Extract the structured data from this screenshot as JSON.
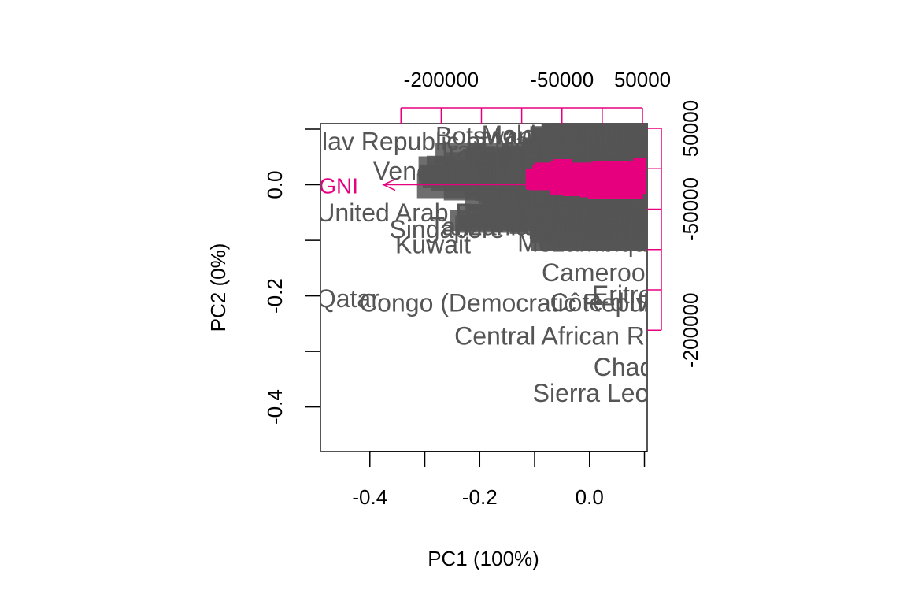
{
  "chart_data": {
    "type": "scatter",
    "subtype": "biplot",
    "xlabel": "PC1 (100%)",
    "ylabel": "PC2 (0%)",
    "xlim": [
      -0.49,
      0.105
    ],
    "ylim": [
      -0.48,
      0.11
    ],
    "bottom_ticks": [
      "-0.4",
      "-0.2",
      "0.0"
    ],
    "bottom_tick_values": [
      -0.4,
      -0.2,
      0.0
    ],
    "left_ticks": [
      "-0.4",
      "-0.2",
      "0.0"
    ],
    "left_tick_values": [
      -0.4,
      -0.2,
      0.0
    ],
    "top_ticks": [
      "-200000",
      "-50000",
      "50000"
    ],
    "top_tick_values": [
      -200000,
      -50000,
      50000
    ],
    "right_ticks": [
      "50000",
      "-50000",
      "-200000"
    ],
    "right_tick_values": [
      50000,
      -50000,
      -200000
    ],
    "secondary_range": [
      -350000,
      50000
    ],
    "colors": {
      "observations": "#555555",
      "variables": "#e6007e",
      "frame": "#555555"
    },
    "grid": false,
    "variables": [
      {
        "label": "GNI",
        "x": -0.385,
        "y": 0.0
      }
    ],
    "observations": [
      {
        "label": "The former Yugoslav Republic of Macedonia",
        "x": -0.4,
        "y": 0.078
      },
      {
        "label": "Venezuela",
        "x": -0.287,
        "y": 0.025
      },
      {
        "label": "United Arab Emirates",
        "x": -0.28,
        "y": -0.05
      },
      {
        "label": "Singapore",
        "x": -0.26,
        "y": -0.08
      },
      {
        "label": "Kuwait",
        "x": -0.285,
        "y": -0.108
      },
      {
        "label": "Qatar",
        "x": -0.44,
        "y": -0.205
      },
      {
        "label": "Congo (Democratic Republic of the)",
        "x": -0.055,
        "y": -0.213
      },
      {
        "label": "Central African Republic",
        "x": 0.0,
        "y": -0.272
      },
      {
        "label": "Chad",
        "x": 0.062,
        "y": -0.328
      },
      {
        "label": "Sierra Leone",
        "x": 0.028,
        "y": -0.375
      },
      {
        "label": "Côte d'Ivoire",
        "x": 0.056,
        "y": -0.212
      },
      {
        "label": "Eritrea",
        "x": 0.072,
        "y": -0.198
      },
      {
        "label": "Cameroon",
        "x": 0.02,
        "y": -0.158
      },
      {
        "label": "Mozambique",
        "x": 0.0,
        "y": -0.105
      },
      {
        "label": "Iran",
        "x": -0.23,
        "y": 0.062
      },
      {
        "label": "Botswana",
        "x": -0.18,
        "y": 0.088
      },
      {
        "label": "Moldova",
        "x": -0.11,
        "y": 0.09
      },
      {
        "label": "Tanzania",
        "x": -0.2,
        "y": -0.075
      }
    ]
  }
}
